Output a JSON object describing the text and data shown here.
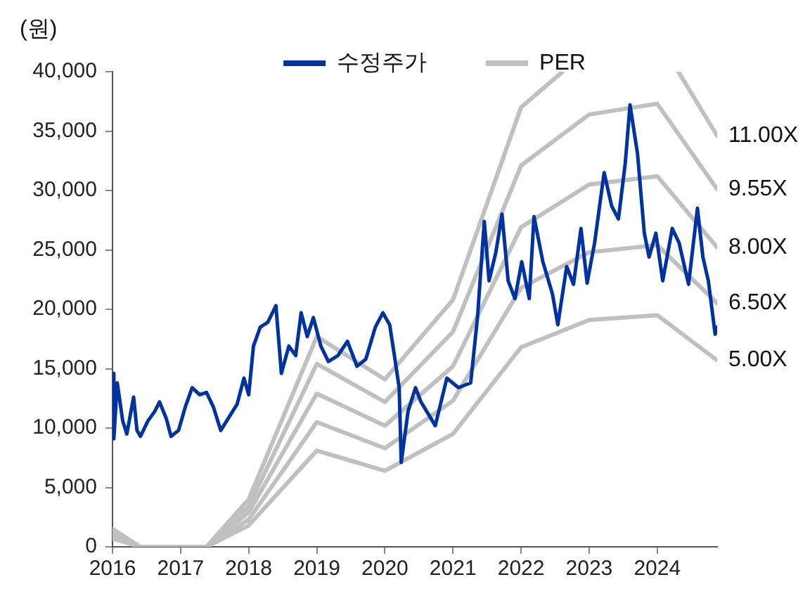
{
  "chart_data": {
    "type": "line",
    "ylabel": "(원)",
    "xlim": [
      2016,
      2024.88
    ],
    "xticks": [
      2016,
      2017,
      2018,
      2019,
      2020,
      2021,
      2022,
      2023,
      2024
    ],
    "ylim": [
      0,
      40000
    ],
    "yticks": [
      0,
      {
        "value": 5000,
        "label": "5,000"
      },
      {
        "value": 10000,
        "label": "10,000"
      },
      {
        "value": 15000,
        "label": "15,000"
      },
      {
        "value": 20000,
        "label": "20,000"
      },
      {
        "value": 25000,
        "label": "25,000"
      },
      {
        "value": 30000,
        "label": "30,000"
      },
      {
        "value": 35000,
        "label": "35,000"
      },
      {
        "value": 40000,
        "label": "40,000"
      }
    ],
    "grid": false,
    "legend": "top",
    "marker": "none",
    "line_style": "solid",
    "annotations": [
      "PER"
    ],
    "series": [
      {
        "name": "수정주가",
        "color": "#0033a0",
        "x": [
          2016.0,
          2016.02,
          2016.07,
          2016.15,
          2016.21,
          2016.31,
          2016.36,
          2016.41,
          2016.52,
          2016.62,
          2016.69,
          2016.79,
          2016.86,
          2016.97,
          2017.07,
          2017.17,
          2017.28,
          2017.38,
          2017.48,
          2017.59,
          2017.72,
          2017.83,
          2017.93,
          2018.0,
          2018.07,
          2018.17,
          2018.28,
          2018.4,
          2018.48,
          2018.59,
          2018.69,
          2018.77,
          2018.86,
          2018.95,
          2019.06,
          2019.17,
          2019.31,
          2019.45,
          2019.59,
          2019.72,
          2019.86,
          2019.97,
          2020.07,
          2020.14,
          2020.21,
          2020.24,
          2020.34,
          2020.45,
          2020.53,
          2020.74,
          2020.91,
          2021.08,
          2021.26,
          2021.36,
          2021.46,
          2021.53,
          2021.63,
          2021.72,
          2021.81,
          2021.91,
          2022.01,
          2022.12,
          2022.19,
          2022.32,
          2022.46,
          2022.54,
          2022.67,
          2022.77,
          2022.88,
          2022.97,
          2023.08,
          2023.22,
          2023.33,
          2023.43,
          2023.53,
          2023.6,
          2023.71,
          2023.81,
          2023.88,
          2023.98,
          2024.08,
          2024.22,
          2024.32,
          2024.46,
          2024.59,
          2024.67,
          2024.75,
          2024.85,
          2024.88
        ],
        "values": [
          14600,
          9100,
          13800,
          10600,
          9500,
          12600,
          9800,
          9300,
          10600,
          11400,
          12200,
          10800,
          9300,
          9800,
          11800,
          13400,
          12800,
          13000,
          11800,
          9800,
          11000,
          12000,
          14200,
          12800,
          16900,
          18500,
          18900,
          20300,
          14600,
          16900,
          16100,
          19700,
          17700,
          19300,
          16900,
          15600,
          16100,
          17300,
          15200,
          15800,
          18500,
          19700,
          18700,
          16100,
          13400,
          7100,
          11400,
          13400,
          12200,
          10200,
          14200,
          13400,
          13800,
          19300,
          27400,
          22400,
          24800,
          28000,
          22400,
          20900,
          24000,
          20900,
          27800,
          24000,
          21300,
          18700,
          23600,
          22100,
          26800,
          22200,
          25600,
          31500,
          28700,
          27600,
          32300,
          37200,
          33100,
          26400,
          24400,
          26400,
          22400,
          26800,
          25600,
          22100,
          28500,
          24400,
          22400,
          17900,
          18500
        ]
      },
      {
        "name": "11.00X",
        "color": "#c0c0c0",
        "x": [
          2016,
          2016.41,
          2017.38,
          2018,
          2019,
          2020,
          2021,
          2022,
          2022.61,
          2023,
          2024,
          2024.31,
          2024.88
        ],
        "values": [
          1500,
          0,
          0,
          4000,
          17700,
          14100,
          20800,
          37000,
          40000,
          null,
          null,
          40000,
          34600
        ]
      },
      {
        "name": "9.55X",
        "color": "#c0c0c0",
        "x": [
          2016,
          2016.41,
          2017.38,
          2018,
          2019,
          2020,
          2021,
          2022,
          2023,
          2024,
          2024.88
        ],
        "values": [
          1300,
          0,
          0,
          3400,
          15400,
          12200,
          18100,
          32100,
          36400,
          37300,
          30100
        ]
      },
      {
        "name": "8.00X",
        "color": "#c0c0c0",
        "x": [
          2016,
          2016.41,
          2017.38,
          2018,
          2019,
          2020,
          2021,
          2022,
          2023,
          2024,
          2024.88
        ],
        "values": [
          1100,
          0,
          0,
          2900,
          12900,
          10200,
          15200,
          26900,
          30500,
          31200,
          25200
        ]
      },
      {
        "name": "6.50X",
        "color": "#c0c0c0",
        "x": [
          2016,
          2016.41,
          2017.38,
          2018,
          2019,
          2020,
          2021,
          2022,
          2023,
          2024,
          2024.88
        ],
        "values": [
          900,
          0,
          0,
          2300,
          10500,
          8300,
          12300,
          21800,
          24800,
          25400,
          20500
        ]
      },
      {
        "name": "5.00X",
        "color": "#c0c0c0",
        "x": [
          2016,
          2016.41,
          2017.38,
          2018,
          2019,
          2020,
          2021,
          2022,
          2023,
          2024,
          2024.88
        ],
        "values": [
          700,
          0,
          0,
          1800,
          8100,
          6400,
          9500,
          16800,
          19100,
          19500,
          15700
        ]
      }
    ]
  }
}
